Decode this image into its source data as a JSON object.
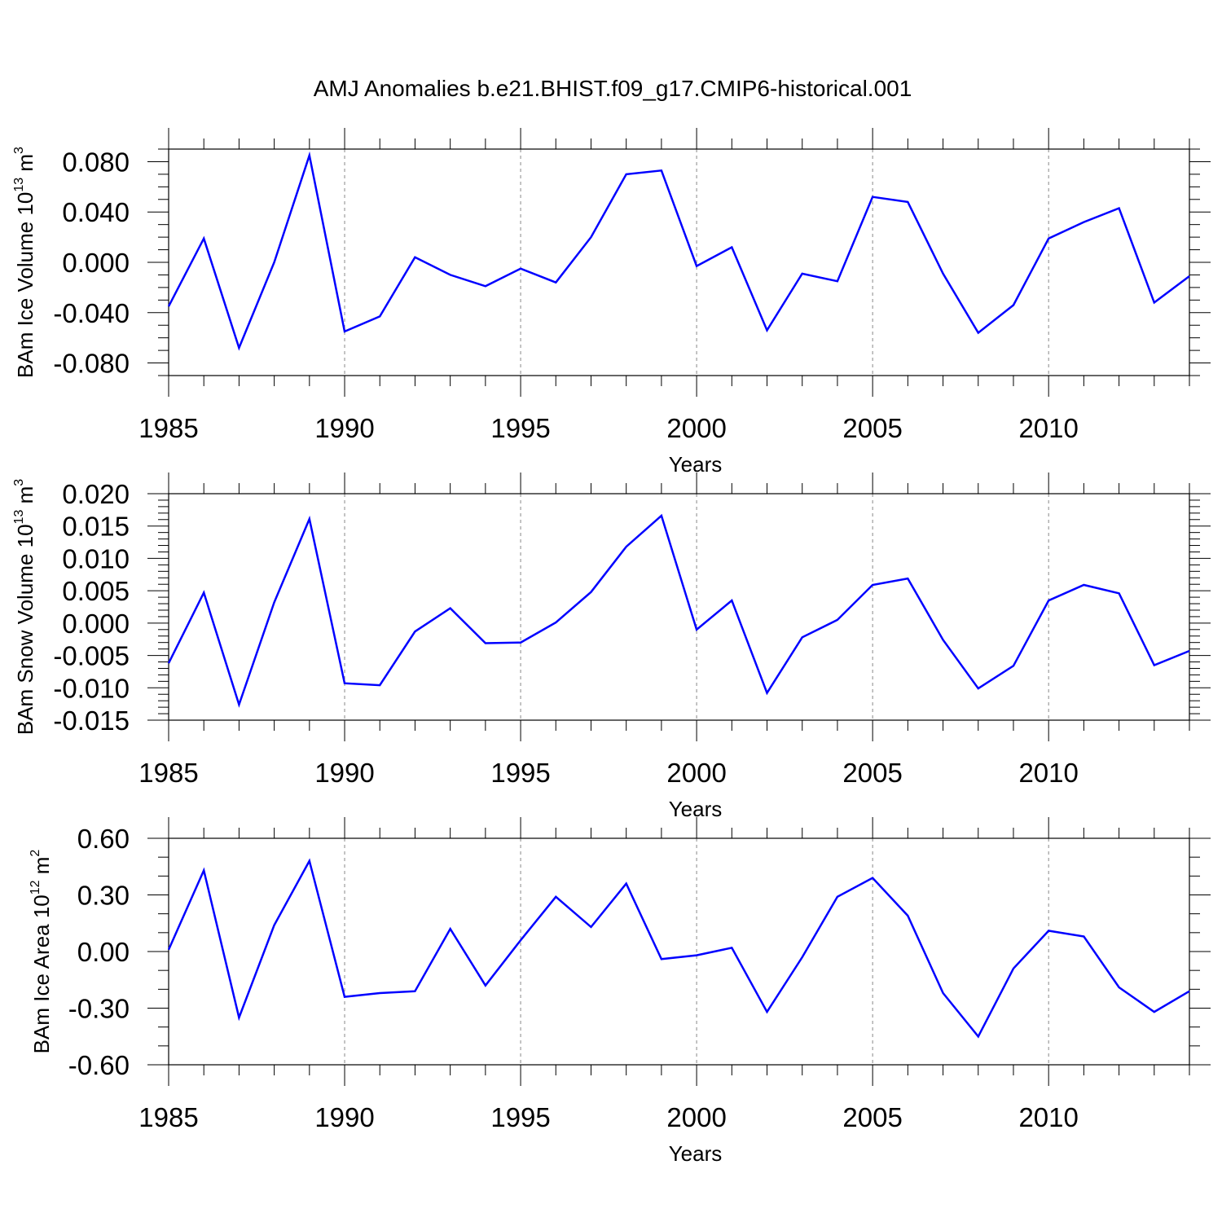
{
  "title": "AMJ Anomalies b.e21.BHIST.f09_g17.CMIP6-historical.001",
  "line_color": "#0000ff",
  "chart_data": [
    {
      "type": "line",
      "ylabel_main": "BAm Ice Volume 10",
      "ylabel_exp": "13",
      "ylabel_unit": " m",
      "ylabel_unit_exp": "3",
      "xlabel": "Years",
      "xlim": [
        1985,
        2014
      ],
      "ylim": [
        -0.09,
        0.09
      ],
      "yticks": [
        0.08,
        0.04,
        0.0,
        -0.04,
        -0.08
      ],
      "ytick_labels": [
        "0.080",
        "0.040",
        "0.000",
        "-0.040",
        "-0.080"
      ],
      "yminor_step": 0.01,
      "xticks": [
        1985,
        1990,
        1995,
        2000,
        2005,
        2010
      ],
      "xtick_labels": [
        "1985",
        "1990",
        "1995",
        "2000",
        "2005",
        "2010"
      ],
      "x": [
        1985,
        1986,
        1987,
        1988,
        1989,
        1990,
        1991,
        1992,
        1993,
        1994,
        1995,
        1996,
        1997,
        1998,
        1999,
        2000,
        2001,
        2002,
        2003,
        2004,
        2005,
        2006,
        2007,
        2008,
        2009,
        2010,
        2011,
        2012,
        2013,
        2014
      ],
      "values": [
        -0.035,
        0.019,
        -0.068,
        0.0,
        0.085,
        -0.055,
        -0.043,
        0.004,
        -0.01,
        -0.019,
        -0.005,
        -0.016,
        0.02,
        0.07,
        0.073,
        -0.003,
        0.012,
        -0.054,
        -0.009,
        -0.015,
        0.052,
        0.048,
        -0.009,
        -0.056,
        -0.034,
        0.019,
        0.032,
        0.043,
        -0.032,
        -0.011
      ]
    },
    {
      "type": "line",
      "ylabel_main": "BAm Snow Volume 10",
      "ylabel_exp": "13",
      "ylabel_unit": " m",
      "ylabel_unit_exp": "3",
      "xlabel": "Years",
      "xlim": [
        1985,
        2014
      ],
      "ylim": [
        -0.015,
        0.02
      ],
      "yticks": [
        0.02,
        0.015,
        0.01,
        0.005,
        0.0,
        -0.005,
        -0.01,
        -0.015
      ],
      "ytick_labels": [
        "0.020",
        "0.015",
        "0.010",
        "0.005",
        "0.000",
        "-0.005",
        "-0.010",
        "-0.015"
      ],
      "yminor_step": 0.001,
      "xticks": [
        1985,
        1990,
        1995,
        2000,
        2005,
        2010
      ],
      "xtick_labels": [
        "1985",
        "1990",
        "1995",
        "2000",
        "2005",
        "2010"
      ],
      "x": [
        1985,
        1986,
        1987,
        1988,
        1989,
        1990,
        1991,
        1992,
        1993,
        1994,
        1995,
        1996,
        1997,
        1998,
        1999,
        2000,
        2001,
        2002,
        2003,
        2004,
        2005,
        2006,
        2007,
        2008,
        2009,
        2010,
        2011,
        2012,
        2013,
        2014
      ],
      "values": [
        -0.0062,
        0.0047,
        -0.0126,
        0.0032,
        0.0161,
        -0.0093,
        -0.0096,
        -0.0013,
        0.0023,
        -0.0031,
        -0.003,
        0.0001,
        0.0048,
        0.0118,
        0.0166,
        -0.001,
        0.0035,
        -0.0108,
        -0.0022,
        0.0005,
        0.0059,
        0.0069,
        -0.0026,
        -0.0101,
        -0.0066,
        0.0035,
        0.0059,
        0.0046,
        -0.0065,
        -0.0043
      ]
    },
    {
      "type": "line",
      "ylabel_main": "BAm Ice Area 10",
      "ylabel_exp": "12",
      "ylabel_unit": " m",
      "ylabel_unit_exp": "2",
      "xlabel": "Years",
      "xlim": [
        1985,
        2014
      ],
      "ylim": [
        -0.6,
        0.6
      ],
      "yticks": [
        0.6,
        0.3,
        0.0,
        -0.3,
        -0.6
      ],
      "ytick_labels": [
        "0.60",
        "0.30",
        "0.00",
        "-0.30",
        "-0.60"
      ],
      "yminor_step": 0.1,
      "xticks": [
        1985,
        1990,
        1995,
        2000,
        2005,
        2010
      ],
      "xtick_labels": [
        "1985",
        "1990",
        "1995",
        "2000",
        "2005",
        "2010"
      ],
      "x": [
        1985,
        1986,
        1987,
        1988,
        1989,
        1990,
        1991,
        1992,
        1993,
        1994,
        1995,
        1996,
        1997,
        1998,
        1999,
        2000,
        2001,
        2002,
        2003,
        2004,
        2005,
        2006,
        2007,
        2008,
        2009,
        2010,
        2011,
        2012,
        2013,
        2014
      ],
      "values": [
        0.01,
        0.43,
        -0.35,
        0.14,
        0.48,
        -0.24,
        -0.22,
        -0.21,
        0.12,
        -0.18,
        0.06,
        0.29,
        0.13,
        0.36,
        -0.04,
        -0.02,
        0.02,
        -0.32,
        -0.03,
        0.29,
        0.39,
        0.19,
        -0.22,
        -0.45,
        -0.09,
        0.11,
        0.08,
        -0.19,
        -0.32,
        -0.21
      ]
    }
  ]
}
